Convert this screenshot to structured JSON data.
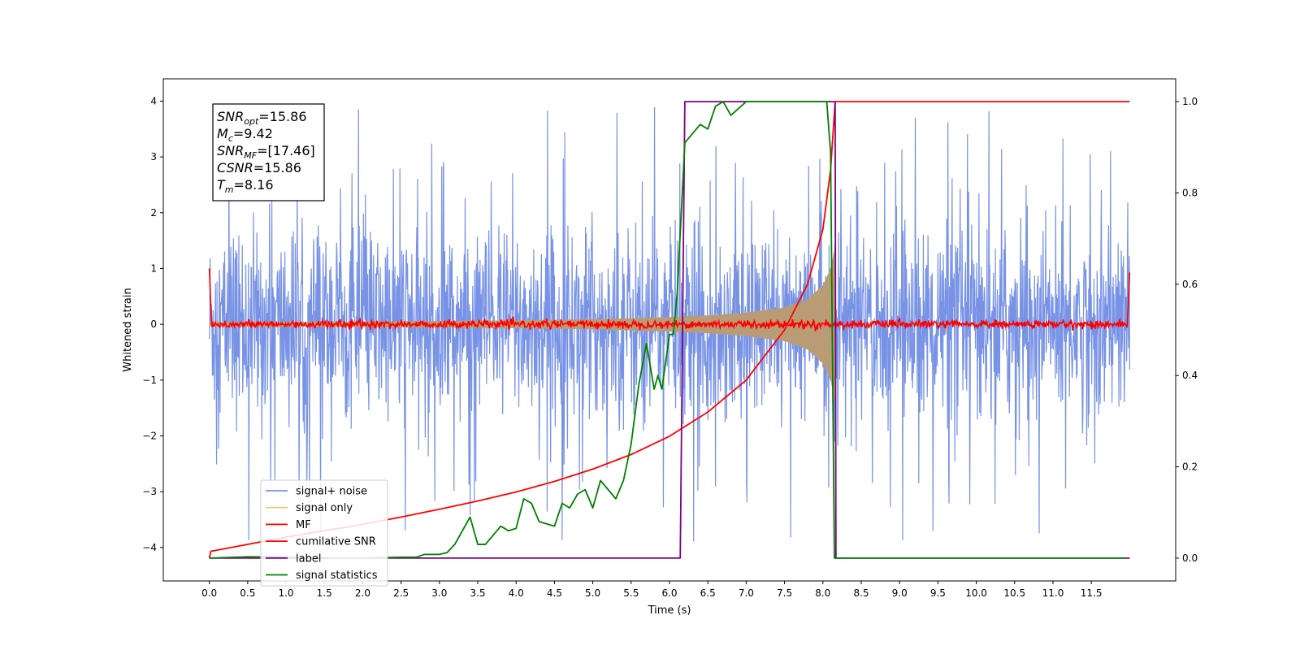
{
  "chart_data": {
    "type": "line",
    "xlabel": "Time (s)",
    "ylabel": "Whitened strain",
    "ylabel_right": "",
    "xlim": [
      -0.6,
      12.6
    ],
    "ylim_left": [
      -4.6,
      4.4
    ],
    "ylim_right": [
      -0.05,
      1.05
    ],
    "grid": false,
    "legend_position": "lower-left",
    "x_ticks": [
      0.0,
      0.5,
      1.0,
      1.5,
      2.0,
      2.5,
      3.0,
      3.5,
      4.0,
      4.5,
      5.0,
      5.5,
      6.0,
      6.5,
      7.0,
      7.5,
      8.0,
      8.5,
      9.0,
      9.5,
      10.0,
      10.5,
      11.0,
      11.5
    ],
    "x_tick_labels": [
      "0.0",
      "0.5",
      "1.0",
      "1.5",
      "2.0",
      "2.5",
      "3.0",
      "3.5",
      "4.0",
      "4.5",
      "5.0",
      "5.5",
      "6.0",
      "6.5",
      "7.0",
      "7.5",
      "8.0",
      "8.5",
      "9.0",
      "9.5",
      "10.0",
      "10.5",
      "11.0",
      "11.5"
    ],
    "y_left_ticks": [
      -4,
      -3,
      -2,
      -1,
      0,
      1,
      2,
      3,
      4
    ],
    "y_left_tick_labels": [
      "−4",
      "−3",
      "−2",
      "−1",
      "0",
      "1",
      "2",
      "3",
      "4"
    ],
    "y_right_ticks": [
      0.0,
      0.2,
      0.4,
      0.6,
      0.8,
      1.0
    ],
    "y_right_tick_labels": [
      "0.0",
      "0.2",
      "0.4",
      "0.6",
      "0.8",
      "1.0"
    ],
    "annotation": {
      "lines": [
        {
          "base": "SNR",
          "sub": "opt",
          "value": "=15.86"
        },
        {
          "base": "M",
          "sub": "c",
          "value": "=9.42"
        },
        {
          "base": "SNR",
          "sub": "MF",
          "value": "=[17.46]"
        },
        {
          "base": "CSNR",
          "sub": "",
          "value": "=15.86"
        },
        {
          "base": "T",
          "sub": "m",
          "value": "=8.16"
        }
      ]
    },
    "series": [
      {
        "name": "signal+ noise",
        "color": "#7893e6",
        "axis": "left",
        "kind": "noise_band",
        "x_range": [
          0.0,
          12.0
        ],
        "typical_range": [
          -1.4,
          1.4
        ],
        "peak_range": [
          -4.1,
          4.0
        ]
      },
      {
        "name": "signal only",
        "color": "#f5c97a",
        "axis": "left",
        "kind": "chirp_envelope",
        "x": [
          0.0,
          2.0,
          4.0,
          5.0,
          6.0,
          6.5,
          7.0,
          7.5,
          7.8,
          8.0,
          8.1,
          8.16
        ],
        "amplitude": [
          0.04,
          0.05,
          0.07,
          0.09,
          0.13,
          0.16,
          0.21,
          0.3,
          0.45,
          0.7,
          1.0,
          1.4
        ]
      },
      {
        "name": "MF",
        "color": "#ff0000",
        "axis": "left",
        "kind": "noise_line",
        "x_range": [
          0.0,
          12.0
        ],
        "level": 0.0,
        "fluctuation": 0.08,
        "start_value": 1.0,
        "end_value": 0.93
      },
      {
        "name": "cumilative SNR",
        "color": "#ff0000",
        "axis": "right",
        "x": [
          0.0,
          0.02,
          0.5,
          1.0,
          1.5,
          2.0,
          2.5,
          3.0,
          3.5,
          4.0,
          4.5,
          5.0,
          5.5,
          6.0,
          6.5,
          7.0,
          7.5,
          7.8,
          8.0,
          8.1,
          8.16,
          8.5,
          12.0
        ],
        "values": [
          0.0,
          0.015,
          0.03,
          0.046,
          0.06,
          0.074,
          0.09,
          0.107,
          0.125,
          0.145,
          0.168,
          0.195,
          0.227,
          0.267,
          0.32,
          0.39,
          0.5,
          0.6,
          0.72,
          0.85,
          1.0,
          1.0,
          1.0
        ]
      },
      {
        "name": "label",
        "color": "#800080",
        "axis": "right",
        "x": [
          0.0,
          6.14,
          6.2,
          8.16,
          8.17,
          12.0
        ],
        "values": [
          0.0,
          0.0,
          1.0,
          1.0,
          0.0,
          0.0
        ]
      },
      {
        "name": "signal statistics",
        "color": "#008000",
        "axis": "right",
        "x": [
          0.0,
          0.5,
          1.0,
          1.5,
          2.0,
          2.5,
          2.7,
          2.8,
          3.0,
          3.1,
          3.2,
          3.3,
          3.4,
          3.5,
          3.6,
          3.7,
          3.8,
          3.9,
          4.0,
          4.1,
          4.2,
          4.3,
          4.5,
          4.6,
          4.7,
          4.8,
          4.9,
          5.0,
          5.1,
          5.2,
          5.3,
          5.4,
          5.5,
          5.6,
          5.7,
          5.8,
          5.85,
          5.9,
          6.0,
          6.05,
          6.1,
          6.2,
          6.3,
          6.4,
          6.5,
          6.6,
          6.7,
          6.8,
          7.0,
          7.2,
          7.5,
          7.8,
          8.0,
          8.05,
          8.1,
          8.15,
          8.2,
          8.5,
          9.0,
          10.0,
          11.0,
          11.95
        ],
        "values": [
          0.0,
          0.003,
          0.002,
          0.0,
          0.0,
          0.002,
          0.002,
          0.008,
          0.008,
          0.012,
          0.03,
          0.06,
          0.09,
          0.03,
          0.03,
          0.05,
          0.07,
          0.06,
          0.065,
          0.13,
          0.12,
          0.08,
          0.07,
          0.12,
          0.11,
          0.14,
          0.15,
          0.11,
          0.17,
          0.15,
          0.13,
          0.17,
          0.25,
          0.38,
          0.47,
          0.37,
          0.4,
          0.37,
          0.49,
          0.49,
          0.58,
          0.91,
          0.93,
          0.95,
          0.94,
          0.99,
          1.0,
          0.97,
          1.0,
          1.0,
          1.0,
          1.0,
          1.0,
          1.0,
          0.89,
          0.0,
          0.0,
          0.0,
          0.0,
          0.0,
          0.0,
          0.0
        ]
      }
    ]
  },
  "colors": {
    "axes": "#000000",
    "background": "#ffffff",
    "overlap": "#b99c76"
  }
}
